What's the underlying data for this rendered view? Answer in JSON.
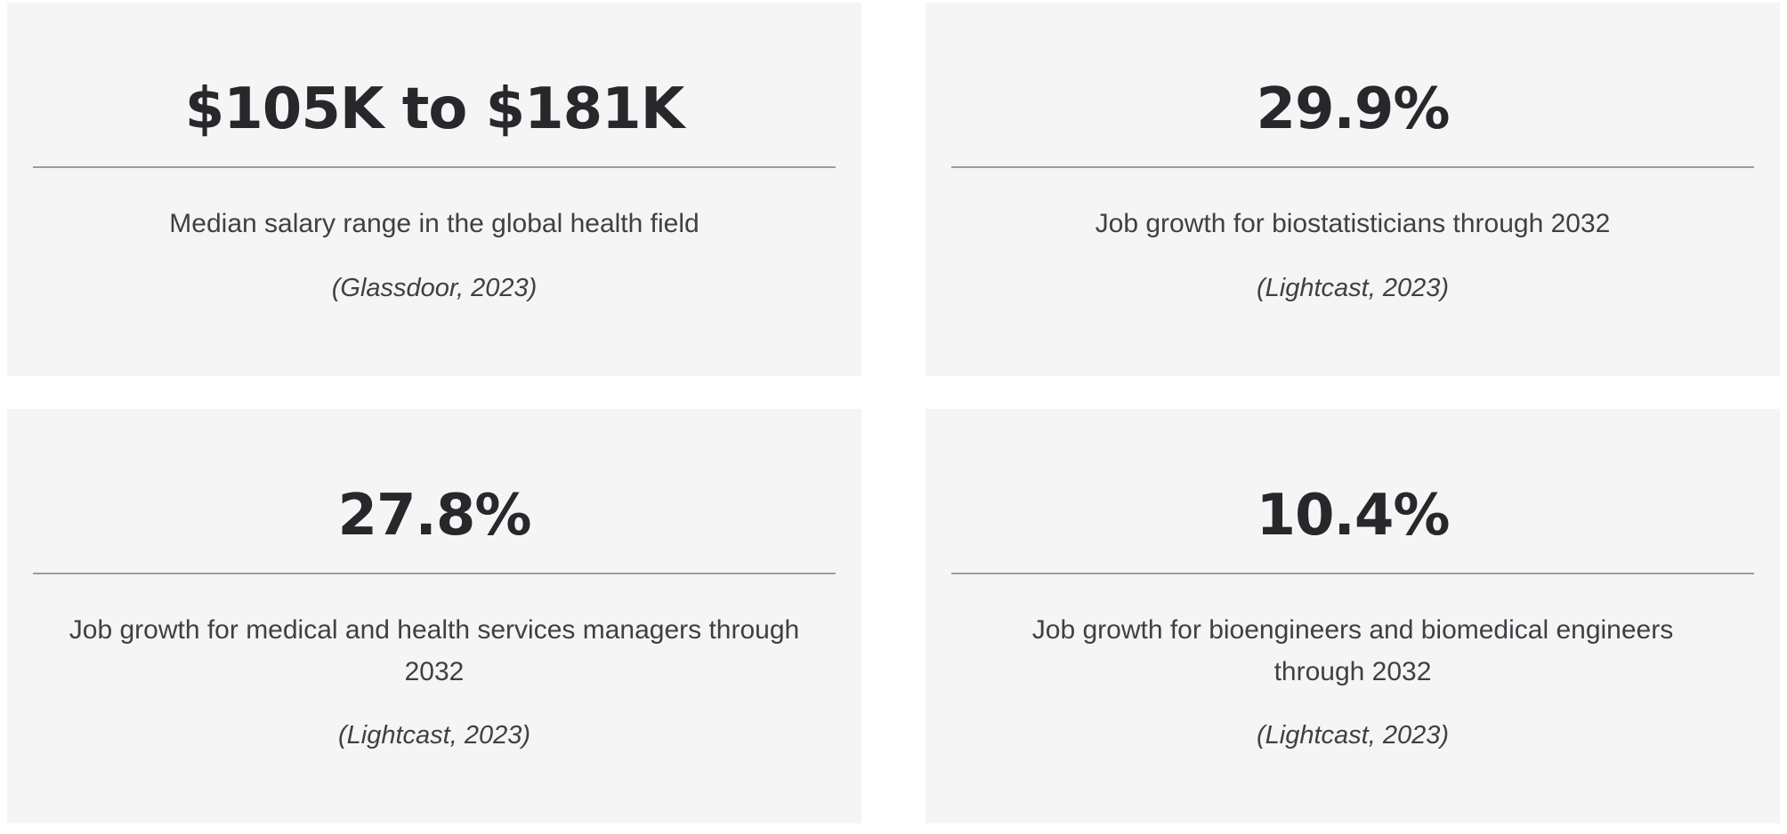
{
  "theme": {
    "page_background": "#ffffff",
    "card_background": "#f5f5f6",
    "heading_color": "#26282b",
    "text_color": "#3e4043",
    "divider_color": "#9c9c9e"
  },
  "cards": [
    {
      "value": "$105K to $181K",
      "description": "Median salary range in the global health field",
      "source": "(Glassdoor, 2023)"
    },
    {
      "value": "29.9%",
      "description": "Job growth for biostatisticians through 2032",
      "source": "(Lightcast, 2023)"
    },
    {
      "value": "27.8%",
      "description": "Job growth for medical and health services managers through 2032",
      "source": "(Lightcast, 2023)"
    },
    {
      "value": "10.4%",
      "description": "Job growth for bioengineers and biomedical engineers through 2032",
      "source": "(Lightcast, 2023)"
    }
  ]
}
